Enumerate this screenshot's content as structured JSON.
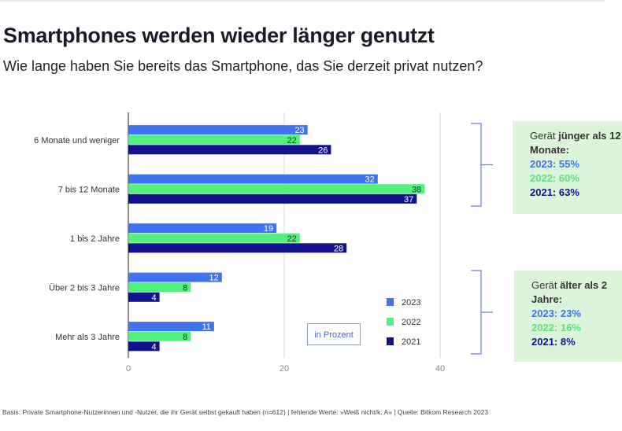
{
  "title": "Smartphones werden wieder länger genutzt",
  "subtitle": "Wie lange haben Sie bereits das Smartphone, das Sie derzeit privat nutzen?",
  "chart_data": {
    "type": "bar",
    "orientation": "horizontal",
    "categories": [
      "6 Monate und weniger",
      "7 bis 12 Monate",
      "1 bis 2 Jahre",
      "Über 2 bis 3 Jahre",
      "Mehr als 3 Jahre"
    ],
    "series": [
      {
        "name": "2023",
        "color": "#3f74ee",
        "values": [
          23,
          32,
          19,
          12,
          11
        ]
      },
      {
        "name": "2022",
        "color": "#52f07c",
        "values": [
          22,
          38,
          22,
          8,
          8
        ]
      },
      {
        "name": "2021",
        "color": "#12128c",
        "values": [
          26,
          37,
          28,
          4,
          4
        ]
      }
    ],
    "xlim": [
      0,
      45
    ],
    "xticks": [
      "0",
      "20",
      "40"
    ],
    "grid": true,
    "legend": "bottom-right",
    "unit_label": "in Prozent"
  },
  "annotations": [
    {
      "prefix": "Gerät ",
      "bold": "jünger als 12 Monate:",
      "lines": [
        "2023: 55%",
        "2022: 60%",
        "2021: 63%"
      ]
    },
    {
      "prefix": "Gerät ",
      "bold": "älter als 2 Jahre:",
      "lines": [
        "2023: 23%",
        "2022: 16%",
        "2021: 8%"
      ]
    }
  ],
  "footer": "Basis: Private Smartphone-Nutzerinnen und -Nutzer, die ihr Gerät selbst gekauft haben (n=612) | fehlende Werte: »Weiß nicht/k. A« | Quelle: Bitkom Research 2023"
}
